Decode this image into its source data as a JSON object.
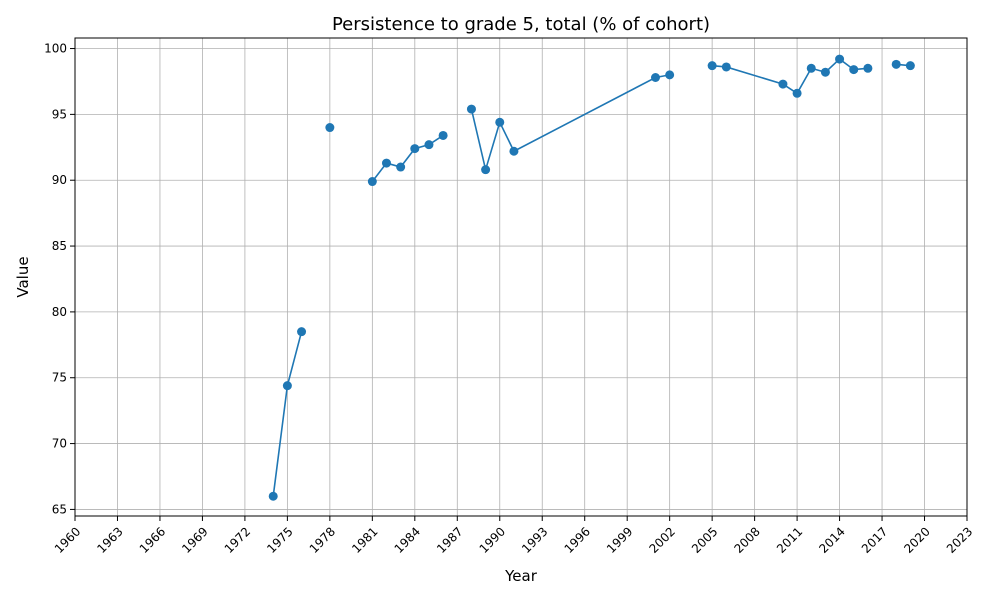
{
  "chart_data": {
    "type": "line",
    "title": "Persistence to grade 5, total (% of cohort)",
    "xlabel": "Year",
    "ylabel": "Value",
    "xlim": [
      1960,
      2023
    ],
    "ylim": [
      64.5,
      100.8
    ],
    "grid": true,
    "x_ticks": [
      1960,
      1963,
      1966,
      1969,
      1972,
      1975,
      1978,
      1981,
      1984,
      1987,
      1990,
      1993,
      1996,
      1999,
      2002,
      2005,
      2008,
      2011,
      2014,
      2017,
      2020,
      2023
    ],
    "y_ticks": [
      65,
      70,
      75,
      80,
      85,
      90,
      95,
      100
    ],
    "color": "#1f77b4",
    "series": [
      {
        "x": [
          1974,
          1975,
          1976,
          1977,
          1978,
          1979,
          1980,
          1981,
          1982,
          1983,
          1984,
          1985,
          1986,
          1987,
          1988,
          1989,
          1990,
          1991,
          2001,
          2002,
          2003,
          2004,
          2005,
          2006,
          2010,
          2011,
          2012,
          2013,
          2014,
          2015,
          2016,
          2017,
          2018,
          2019
        ],
        "values": [
          66.0,
          74.4,
          78.5,
          null,
          94.0,
          null,
          null,
          89.9,
          91.3,
          91.0,
          92.4,
          92.7,
          93.4,
          null,
          95.4,
          90.8,
          94.4,
          92.2,
          97.8,
          98.0,
          null,
          null,
          98.7,
          98.6,
          97.3,
          96.6,
          98.5,
          98.2,
          99.2,
          98.4,
          98.5,
          null,
          98.8,
          98.7
        ]
      }
    ]
  }
}
